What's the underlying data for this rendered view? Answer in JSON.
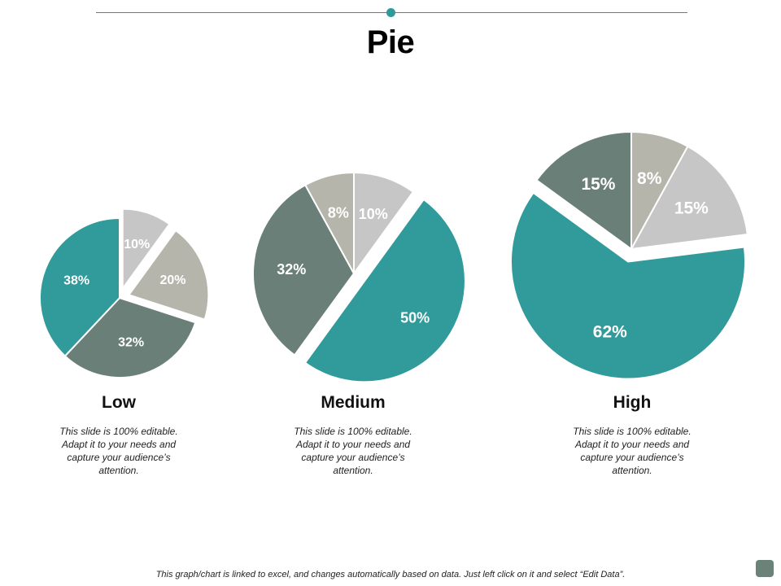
{
  "title": "Pie",
  "footer": "This graph/chart is linked to excel, and changes automatically based on data. Just left click on it and select “Edit Data”.",
  "colors": {
    "teal": "#319a9b",
    "slate": "#6a7f78",
    "taupe": "#b6b5ac",
    "light_gray": "#c6c6c6",
    "accent_line": "#3a8f92"
  },
  "chart_data": [
    {
      "type": "pie",
      "title": "Low",
      "description": "This slide is 100% editable. Adapt it to your needs and capture your audience’s attention.",
      "slices": [
        {
          "label": "10%",
          "value": 10,
          "color": "#c6c6c6",
          "exploded": true
        },
        {
          "label": "20%",
          "value": 20,
          "color": "#b6b5ac",
          "exploded": true
        },
        {
          "label": "32%",
          "value": 32,
          "color": "#6a7f78",
          "exploded": false
        },
        {
          "label": "38%",
          "value": 38,
          "color": "#319a9b",
          "exploded": false
        }
      ]
    },
    {
      "type": "pie",
      "title": "Medium",
      "description": "This slide is 100% editable. Adapt it to your needs and capture your audience’s attention.",
      "slices": [
        {
          "label": "10%",
          "value": 10,
          "color": "#c6c6c6",
          "exploded": false
        },
        {
          "label": "50%",
          "value": 50,
          "color": "#319a9b",
          "exploded": true
        },
        {
          "label": "32%",
          "value": 32,
          "color": "#6a7f78",
          "exploded": false
        },
        {
          "label": "8%",
          "value": 8,
          "color": "#b6b5ac",
          "exploded": false
        }
      ]
    },
    {
      "type": "pie",
      "title": "High",
      "description": "This slide is 100% editable. Adapt it to your needs and capture your audience’s attention.",
      "slices": [
        {
          "label": "8%",
          "value": 8,
          "color": "#b6b5ac",
          "exploded": false
        },
        {
          "label": "15%",
          "value": 15,
          "color": "#c6c6c6",
          "exploded": false
        },
        {
          "label": "62%",
          "value": 62,
          "color": "#319a9b",
          "exploded": true
        },
        {
          "label": "15%",
          "value": 15,
          "color": "#6a7f78",
          "exploded": false
        }
      ]
    }
  ]
}
